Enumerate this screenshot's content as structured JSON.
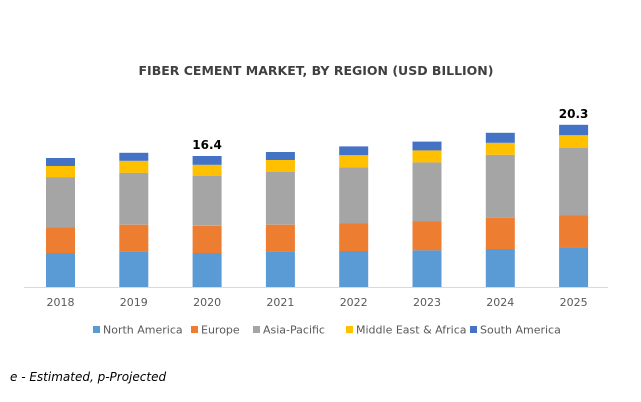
{
  "chart_data": {
    "type": "bar",
    "stacked": true,
    "title": "FIBER CEMENT MARKET, BY REGION (USD BILLION)",
    "xlabel": "",
    "ylabel": "",
    "ylim": [
      0,
      22
    ],
    "grid": false,
    "legend_position": "bottom",
    "categories": [
      "2018",
      "2019",
      "2020",
      "2021",
      "2022",
      "2023",
      "2024",
      "2025"
    ],
    "series": [
      {
        "name": "North America",
        "color": "#5B9BD5",
        "values": [
          4.25,
          4.4,
          4.25,
          4.4,
          4.5,
          4.6,
          4.75,
          5.0
        ]
      },
      {
        "name": "Europe",
        "color": "#ED7D31",
        "values": [
          3.25,
          3.4,
          3.4,
          3.4,
          3.5,
          3.6,
          3.9,
          4.0
        ]
      },
      {
        "name": "Asia-Pacific",
        "color": "#A5A5A5",
        "values": [
          6.25,
          6.5,
          6.25,
          6.6,
          7.0,
          7.4,
          7.9,
          8.4
        ]
      },
      {
        "name": "Middle East & Africa",
        "color": "#FFC000",
        "values": [
          1.4,
          1.5,
          1.4,
          1.5,
          1.5,
          1.5,
          1.5,
          1.6
        ]
      },
      {
        "name": "South America",
        "color": "#4472C4",
        "values": [
          1.0,
          1.0,
          1.1,
          1.0,
          1.1,
          1.1,
          1.25,
          1.3
        ]
      }
    ],
    "annotations": [
      {
        "category": "2020",
        "text": "16.4"
      },
      {
        "category": "2025",
        "text": "20.3"
      }
    ]
  },
  "footnote": "e - Estimated, p-Projected"
}
